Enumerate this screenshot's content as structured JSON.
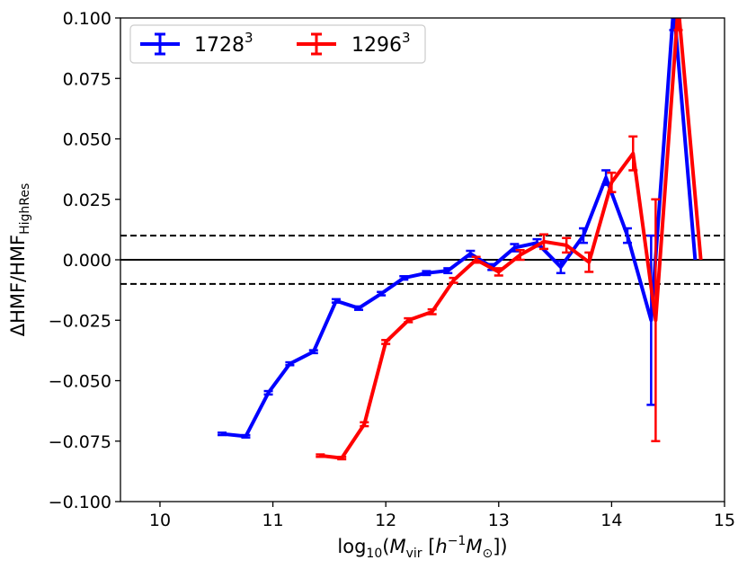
{
  "chart_data": {
    "type": "line",
    "title": "",
    "xlabel": {
      "prefix": "log",
      "sub": "10",
      "open": "(",
      "M": "M",
      "Msub": "vir",
      "unitOpen": " [",
      "h": "h",
      "hsup": "−1",
      "M2": "M",
      "M2sub": "⊙",
      "unitClose": "])"
    },
    "ylabel": {
      "main": "ΔHMF/HMF",
      "sub": "HighRes"
    },
    "xlim": [
      9.65,
      15.0
    ],
    "ylim": [
      -0.1,
      0.1
    ],
    "xticks": [
      10,
      11,
      12,
      13,
      14,
      15
    ],
    "xtick_labels": [
      "10",
      "11",
      "12",
      "13",
      "14",
      "15"
    ],
    "yticks": [
      -0.1,
      -0.075,
      -0.05,
      -0.025,
      0.0,
      0.025,
      0.05,
      0.075,
      0.1
    ],
    "ytick_labels": [
      "−0.100",
      "−0.075",
      "−0.050",
      "−0.025",
      "0.000",
      "0.025",
      "0.050",
      "0.075",
      "0.100"
    ],
    "hlines": [
      {
        "y": 0.0,
        "style": "solid"
      },
      {
        "y": 0.01,
        "style": "dashed"
      },
      {
        "y": -0.01,
        "style": "dashed"
      }
    ],
    "legend": {
      "placement": "top-left",
      "ncol": 2
    },
    "series": [
      {
        "name": "1728",
        "name_sup": "3",
        "color": "#0000ff",
        "x": [
          10.55,
          10.76,
          10.96,
          11.15,
          11.36,
          11.56,
          11.76,
          11.96,
          12.16,
          12.36,
          12.55,
          12.75,
          12.94,
          13.14,
          13.34,
          13.55,
          13.75,
          13.95,
          14.14,
          14.35,
          14.55,
          14.74
        ],
        "y": [
          -0.072,
          -0.073,
          -0.055,
          -0.043,
          -0.038,
          -0.017,
          -0.02,
          -0.014,
          -0.0075,
          -0.0055,
          -0.0045,
          0.0025,
          -0.003,
          0.005,
          0.007,
          -0.003,
          0.01,
          0.034,
          0.01,
          -0.025,
          0.105,
          0.0
        ],
        "yerr": [
          0.0005,
          0.0005,
          0.0007,
          0.0006,
          0.0006,
          0.0007,
          0.0007,
          0.0007,
          0.0007,
          0.0008,
          0.001,
          0.0012,
          0.0012,
          0.0015,
          0.0015,
          0.0025,
          0.003,
          0.003,
          0.003,
          0.035,
          0.01,
          0.0
        ]
      },
      {
        "name": "1296",
        "name_sup": "3",
        "color": "#ff0000",
        "x": [
          11.42,
          11.61,
          11.81,
          12.0,
          12.2,
          12.41,
          12.6,
          12.8,
          13.0,
          13.19,
          13.4,
          13.6,
          13.8,
          14.0,
          14.19,
          14.39,
          14.59,
          14.79
        ],
        "y": [
          -0.081,
          -0.082,
          -0.068,
          -0.034,
          -0.025,
          -0.0215,
          -0.0085,
          0.0,
          -0.005,
          0.002,
          0.0075,
          0.006,
          -0.001,
          0.032,
          0.044,
          -0.025,
          0.105,
          0.0
        ],
        "yerr": [
          0.0005,
          0.0005,
          0.0008,
          0.0008,
          0.0008,
          0.001,
          0.001,
          0.0012,
          0.0015,
          0.002,
          0.003,
          0.003,
          0.004,
          0.004,
          0.007,
          0.05,
          0.01,
          0.0
        ]
      }
    ]
  }
}
